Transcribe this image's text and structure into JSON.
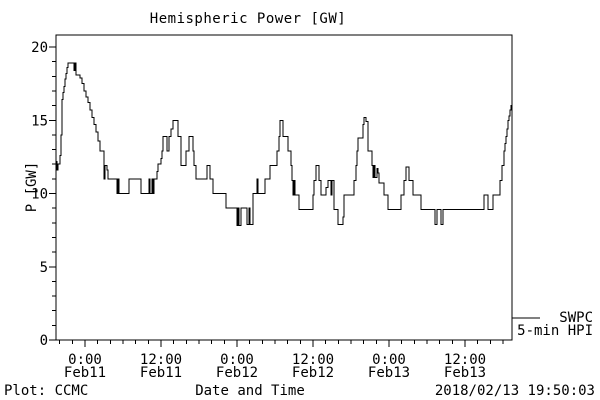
{
  "title": "Hemispheric Power [GW]",
  "footer": {
    "plot_credit": "Plot: CCMC",
    "x_axis_title": "Date and Time",
    "timestamp": "2018/02/13 19:50:03"
  },
  "legend": {
    "source": "SWPC",
    "series_name": "5-min HPI",
    "line_color": "#000000"
  },
  "colors": {
    "background": "#ffffff",
    "foreground": "#000000",
    "line": "#000000"
  },
  "axes": {
    "y": {
      "label": "P [GW]",
      "min": 0,
      "max": 20,
      "major_ticks": [
        0,
        5,
        10,
        15,
        20
      ],
      "minor_step": 1
    },
    "x": {
      "label": "Date and Time",
      "span_hours": 72,
      "minor_step_hours": 2,
      "major_ticks": [
        {
          "t": 4.58,
          "time": "0:00",
          "date": "Feb11"
        },
        {
          "t": 16.58,
          "time": "12:00",
          "date": "Feb11"
        },
        {
          "t": 28.58,
          "time": "0:00",
          "date": "Feb12"
        },
        {
          "t": 40.58,
          "time": "12:00",
          "date": "Feb12"
        },
        {
          "t": 52.58,
          "time": "0:00",
          "date": "Feb13"
        },
        {
          "t": 64.58,
          "time": "12:00",
          "date": "Feb13"
        }
      ]
    }
  },
  "chart_data": {
    "type": "line",
    "step_interpolation": true,
    "title": "Hemispheric Power [GW]",
    "xlabel": "Date and Time",
    "ylabel": "P [GW]",
    "ylim": [
      0,
      20
    ],
    "xlim_hours": [
      0,
      72
    ],
    "grid": false,
    "legend_position": "right-bottom-outside",
    "series": [
      {
        "name": "SWPC 5-min HPI",
        "units": "GW",
        "points": [
          [
            0,
            12.2
          ],
          [
            0.16,
            11.6
          ],
          [
            0.32,
            12
          ],
          [
            0.63,
            12.6
          ],
          [
            0.79,
            14
          ],
          [
            0.95,
            16.4
          ],
          [
            1.11,
            16.9
          ],
          [
            1.26,
            17.3
          ],
          [
            1.42,
            17.8
          ],
          [
            1.58,
            18.2
          ],
          [
            1.74,
            18.6
          ],
          [
            1.89,
            18.9
          ],
          [
            2.84,
            18.4
          ],
          [
            3,
            18.9
          ],
          [
            3.16,
            18.1
          ],
          [
            3.79,
            17.9
          ],
          [
            4.11,
            17.5
          ],
          [
            4.42,
            17
          ],
          [
            4.74,
            16.6
          ],
          [
            5.05,
            16.2
          ],
          [
            5.37,
            15.7
          ],
          [
            5.68,
            15.2
          ],
          [
            6,
            14.7
          ],
          [
            6.32,
            14.2
          ],
          [
            6.63,
            13.6
          ],
          [
            6.95,
            12.9
          ],
          [
            7.58,
            11
          ],
          [
            7.74,
            11.9
          ],
          [
            8.05,
            11.6
          ],
          [
            8.21,
            11
          ],
          [
            9.63,
            10
          ],
          [
            9.79,
            11
          ],
          [
            9.95,
            10
          ],
          [
            11.53,
            11
          ],
          [
            13.42,
            10
          ],
          [
            14.68,
            11
          ],
          [
            14.84,
            10
          ],
          [
            15.16,
            11
          ],
          [
            15.32,
            10
          ],
          [
            15.47,
            11
          ],
          [
            15.95,
            11.5
          ],
          [
            16.11,
            12
          ],
          [
            16.58,
            12.4
          ],
          [
            16.74,
            12.9
          ],
          [
            16.89,
            13.9
          ],
          [
            17.53,
            12.9
          ],
          [
            17.84,
            13.9
          ],
          [
            18.16,
            14.4
          ],
          [
            18.47,
            15
          ],
          [
            19.26,
            13.9
          ],
          [
            19.74,
            11.9
          ],
          [
            20.53,
            12.9
          ],
          [
            21,
            13.9
          ],
          [
            21.63,
            12.9
          ],
          [
            21.79,
            11.9
          ],
          [
            22.11,
            11
          ],
          [
            23.84,
            11.9
          ],
          [
            24.32,
            11
          ],
          [
            24.79,
            10
          ],
          [
            26.84,
            9
          ],
          [
            28.58,
            7.8
          ],
          [
            28.74,
            9
          ],
          [
            28.89,
            7.8
          ],
          [
            29.21,
            9
          ],
          [
            30.16,
            7.9
          ],
          [
            30.47,
            9
          ],
          [
            30.63,
            7.9
          ],
          [
            31.11,
            10
          ],
          [
            31.74,
            11
          ],
          [
            31.89,
            10
          ],
          [
            33,
            11
          ],
          [
            33.79,
            11.9
          ],
          [
            34.89,
            12.9
          ],
          [
            35.21,
            13.9
          ],
          [
            35.37,
            15
          ],
          [
            35.84,
            13.9
          ],
          [
            36.63,
            12.9
          ],
          [
            37.11,
            11.9
          ],
          [
            37.26,
            10.9
          ],
          [
            37.42,
            9.9
          ],
          [
            37.58,
            10.9
          ],
          [
            37.74,
            9.9
          ],
          [
            38.37,
            8.9
          ],
          [
            40.58,
            9.9
          ],
          [
            40.74,
            10.9
          ],
          [
            41.05,
            11.9
          ],
          [
            41.53,
            10.9
          ],
          [
            41.84,
            9.9
          ],
          [
            42.63,
            10.4
          ],
          [
            42.95,
            10.9
          ],
          [
            43.42,
            9.9
          ],
          [
            43.58,
            10.9
          ],
          [
            43.89,
            8.9
          ],
          [
            44.53,
            7.9
          ],
          [
            45.32,
            8.4
          ],
          [
            45.47,
            9.9
          ],
          [
            47.05,
            10.9
          ],
          [
            47.37,
            11.9
          ],
          [
            47.53,
            12.9
          ],
          [
            47.68,
            13.8
          ],
          [
            48.47,
            14.7
          ],
          [
            48.63,
            15.2
          ],
          [
            48.95,
            14.9
          ],
          [
            49.26,
            12.9
          ],
          [
            49.89,
            11.9
          ],
          [
            50.05,
            11.1
          ],
          [
            50.21,
            11.9
          ],
          [
            50.37,
            11.1
          ],
          [
            50.68,
            11.7
          ],
          [
            50.84,
            11.4
          ],
          [
            51,
            10.7
          ],
          [
            51.79,
            9.9
          ],
          [
            52.42,
            8.9
          ],
          [
            54.47,
            9.9
          ],
          [
            54.95,
            10.9
          ],
          [
            55.26,
            11.8
          ],
          [
            55.74,
            10.9
          ],
          [
            56.37,
            9.9
          ],
          [
            57.63,
            8.9
          ],
          [
            59.84,
            7.9
          ],
          [
            60.16,
            8.9
          ],
          [
            60.79,
            7.9
          ],
          [
            61.11,
            8.9
          ],
          [
            67.58,
            9.9
          ],
          [
            68.21,
            8.9
          ],
          [
            69,
            9.9
          ],
          [
            70.11,
            10.9
          ],
          [
            70.42,
            11.9
          ],
          [
            70.74,
            12.9
          ],
          [
            70.89,
            13.4
          ],
          [
            71.05,
            13.9
          ],
          [
            71.21,
            14.4
          ],
          [
            71.37,
            15
          ],
          [
            71.53,
            15.3
          ],
          [
            71.68,
            15.7
          ],
          [
            71.84,
            16
          ],
          [
            72,
            16
          ]
        ]
      }
    ]
  }
}
